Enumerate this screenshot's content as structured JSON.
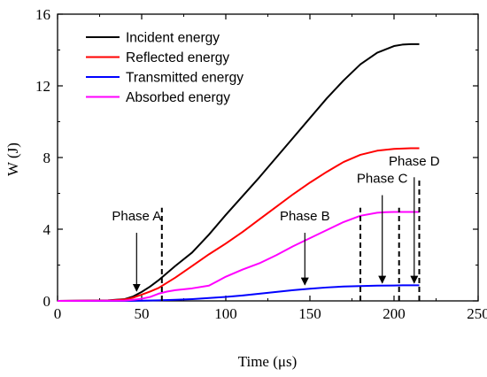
{
  "chart_data": {
    "type": "line",
    "xlabel": "Time (μs)",
    "ylabel": "W (J)",
    "xlim": [
      0,
      250
    ],
    "ylim": [
      0,
      16
    ],
    "xticks": [
      0,
      50,
      100,
      150,
      200,
      250
    ],
    "yticks": [
      0,
      4,
      8,
      12,
      16
    ],
    "xtick_labels": [
      "0",
      "50",
      "100",
      "150",
      "200",
      "250"
    ],
    "ytick_labels": [
      "0",
      "4",
      "8",
      "12",
      "16"
    ],
    "grid": false,
    "legend_position": "top-left",
    "series": [
      {
        "name": "Incident energy",
        "color": "#000000",
        "x": [
          0,
          30,
          40,
          45,
          50,
          55,
          60,
          70,
          80,
          90,
          100,
          110,
          120,
          130,
          140,
          150,
          160,
          170,
          180,
          190,
          200,
          205,
          210,
          215
        ],
        "y": [
          0,
          0.03,
          0.1,
          0.25,
          0.5,
          0.8,
          1.15,
          1.95,
          2.7,
          3.7,
          4.8,
          5.85,
          6.9,
          8.0,
          9.1,
          10.2,
          11.3,
          12.3,
          13.2,
          13.85,
          14.22,
          14.3,
          14.33,
          14.33
        ]
      },
      {
        "name": "Reflected energy",
        "color": "#ff0000",
        "x": [
          0,
          30,
          40,
          45,
          50,
          55,
          60,
          70,
          80,
          90,
          100,
          110,
          120,
          130,
          140,
          150,
          160,
          170,
          180,
          190,
          200,
          205,
          210,
          215
        ],
        "y": [
          0,
          0.02,
          0.08,
          0.18,
          0.35,
          0.52,
          0.72,
          1.3,
          1.95,
          2.6,
          3.2,
          3.85,
          4.55,
          5.25,
          5.95,
          6.6,
          7.2,
          7.75,
          8.15,
          8.38,
          8.48,
          8.5,
          8.52,
          8.52
        ]
      },
      {
        "name": "Transmitted energy",
        "color": "#0000ff",
        "x": [
          0,
          40,
          50,
          60,
          70,
          80,
          90,
          100,
          110,
          120,
          130,
          140,
          150,
          160,
          170,
          180,
          190,
          200,
          205,
          210,
          215
        ],
        "y": [
          0,
          0,
          0.01,
          0.03,
          0.06,
          0.1,
          0.16,
          0.22,
          0.3,
          0.4,
          0.5,
          0.6,
          0.68,
          0.75,
          0.8,
          0.83,
          0.85,
          0.86,
          0.87,
          0.87,
          0.87
        ]
      },
      {
        "name": "Absorbed energy",
        "color": "#ff00ff",
        "x": [
          0,
          30,
          40,
          45,
          50,
          55,
          60,
          65,
          70,
          80,
          90,
          95,
          100,
          110,
          120,
          130,
          140,
          150,
          160,
          170,
          180,
          190,
          195,
          200,
          205,
          210,
          215
        ],
        "y": [
          0,
          0.01,
          0.02,
          0.06,
          0.12,
          0.22,
          0.4,
          0.52,
          0.6,
          0.7,
          0.85,
          1.1,
          1.35,
          1.75,
          2.1,
          2.55,
          3.05,
          3.5,
          3.95,
          4.4,
          4.75,
          4.92,
          4.95,
          4.96,
          4.96,
          4.96,
          4.96
        ]
      }
    ],
    "phase_lines": [
      {
        "x": 62,
        "y_top": 5.2
      },
      {
        "x": 180,
        "y_top": 5.2
      },
      {
        "x": 203,
        "y_top": 5.2
      },
      {
        "x": 215,
        "y_top": 6.8
      }
    ],
    "annotations": [
      {
        "label": "Phase A",
        "label_x": 47,
        "label_y": 4.5,
        "arrow_from": [
          47,
          3.8
        ],
        "arrow_to": [
          47,
          0.55
        ]
      },
      {
        "label": "Phase B",
        "label_x": 147,
        "label_y": 4.5,
        "arrow_from": [
          147,
          3.8
        ],
        "arrow_to": [
          147,
          0.9
        ]
      },
      {
        "label": "Phase C",
        "label_x": 193,
        "label_y": 6.6,
        "arrow_from": [
          193,
          5.9
        ],
        "arrow_to": [
          193,
          1.0
        ]
      },
      {
        "label": "Phase D",
        "label_x": 212,
        "label_y": 7.55,
        "arrow_from": [
          212,
          6.9
        ],
        "arrow_to": [
          212,
          1.0
        ]
      }
    ]
  }
}
